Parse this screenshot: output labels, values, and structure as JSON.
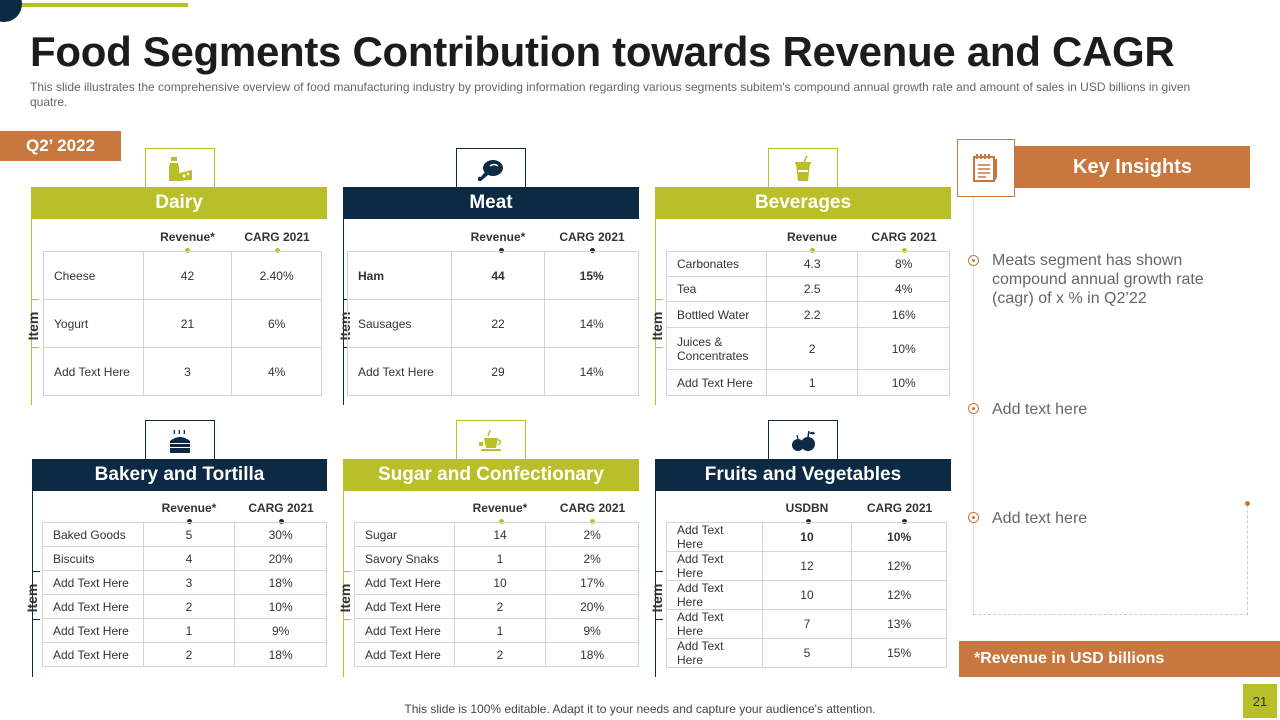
{
  "title": "Food Segments Contribution towards Revenue and CAGR",
  "subtitle": "This slide illustrates the comprehensive overview  of food manufacturing industry by providing information  regarding various  segments subitem's compound annual growth rate and amount of sales in USD billions in given  quatre.",
  "quarter": "Q2’ 2022",
  "item_label": "Item",
  "segments": {
    "dairy": {
      "title": "Dairy",
      "icon": "milk-bottle-cheese-icon",
      "col1": "Revenue*",
      "col2": "CARG  2021",
      "rows": [
        {
          "name": "Cheese",
          "v1": "42",
          "v2": "2.40%"
        },
        {
          "name": "Yogurt",
          "v1": "21",
          "v2": "6%"
        },
        {
          "name": "Add Text Here",
          "v1": "3",
          "v2": "4%"
        }
      ]
    },
    "meat": {
      "title": "Meat",
      "icon": "chicken-leg-icon",
      "col1": "Revenue*",
      "col2": "CARG  2021",
      "rows": [
        {
          "name": "Ham",
          "v1": "44",
          "v2": "15%"
        },
        {
          "name": "Sausages",
          "v1": "22",
          "v2": "14%"
        },
        {
          "name": "Add Text Here",
          "v1": "29",
          "v2": "14%"
        }
      ]
    },
    "beverages": {
      "title": "Beverages",
      "icon": "drink-cup-icon",
      "col1": "Revenue",
      "col2": "CARG  2021",
      "rows": [
        {
          "name": "Carbonates",
          "v1": "4.3",
          "v2": "8%"
        },
        {
          "name": "Tea",
          "v1": "2.5",
          "v2": "4%"
        },
        {
          "name": "Bottled Water",
          "v1": "2.2",
          "v2": "16%"
        },
        {
          "name": "Juices & Concentrates",
          "v1": "2",
          "v2": "10%"
        },
        {
          "name": "Add Text Here",
          "v1": "1",
          "v2": "10%"
        }
      ]
    },
    "bakery": {
      "title": "Bakery and Tortilla",
      "icon": "bread-icon",
      "col1": "Revenue*",
      "col2": "CARG  2021",
      "rows": [
        {
          "name": "Baked Goods",
          "v1": "5",
          "v2": "30%"
        },
        {
          "name": "Biscuits",
          "v1": "4",
          "v2": "20%"
        },
        {
          "name": "Add Text Here",
          "v1": "3",
          "v2": "18%"
        },
        {
          "name": "Add Text Here",
          "v1": "2",
          "v2": "10%"
        },
        {
          "name": "Add Text Here",
          "v1": "1",
          "v2": "9%"
        },
        {
          "name": "Add Text Here",
          "v1": "2",
          "v2": "18%"
        }
      ]
    },
    "sugar": {
      "title": "Sugar and Confectionary",
      "icon": "tea-cup-sugar-icon",
      "col1": "Revenue*",
      "col2": "CARG  2021",
      "rows": [
        {
          "name": "Sugar",
          "v1": "14",
          "v2": "2%"
        },
        {
          "name": "Savory Snaks",
          "v1": "1",
          "v2": "2%"
        },
        {
          "name": "Add Text Here",
          "v1": "10",
          "v2": "17%"
        },
        {
          "name": "Add Text Here",
          "v1": "2",
          "v2": "20%"
        },
        {
          "name": "Add Text Here",
          "v1": "1",
          "v2": "9%"
        },
        {
          "name": "Add Text Here",
          "v1": "2",
          "v2": "18%"
        }
      ]
    },
    "fruits": {
      "title": "Fruits and Vegetables",
      "icon": "fruits-icon",
      "col1": "USDBN",
      "col2": "CARG  2021",
      "rows": [
        {
          "name": "Add Text Here",
          "v1": "10",
          "v2": "10%"
        },
        {
          "name": "Add Text Here",
          "v1": "12",
          "v2": "12%"
        },
        {
          "name": "Add Text Here",
          "v1": "10",
          "v2": "12%"
        },
        {
          "name": "Add Text Here",
          "v1": "7",
          "v2": "13%"
        },
        {
          "name": "Add Text Here",
          "v1": "5",
          "v2": "15%"
        }
      ]
    }
  },
  "insights": {
    "title": "Key Insights",
    "icon": "notepad-icon",
    "items": [
      "Meats segment has shown compound annual growth rate (cagr) of x % in Q2’22",
      "Add text here",
      "Add text here"
    ]
  },
  "revenue_note": "*Revenue in USD billions",
  "footer": "This slide is 100% editable. Adapt it to your needs and capture your audience's attention.",
  "page_number": "21",
  "colors": {
    "green": "#b9bf28",
    "navy": "#0d2a45",
    "orange": "#c8773e"
  }
}
